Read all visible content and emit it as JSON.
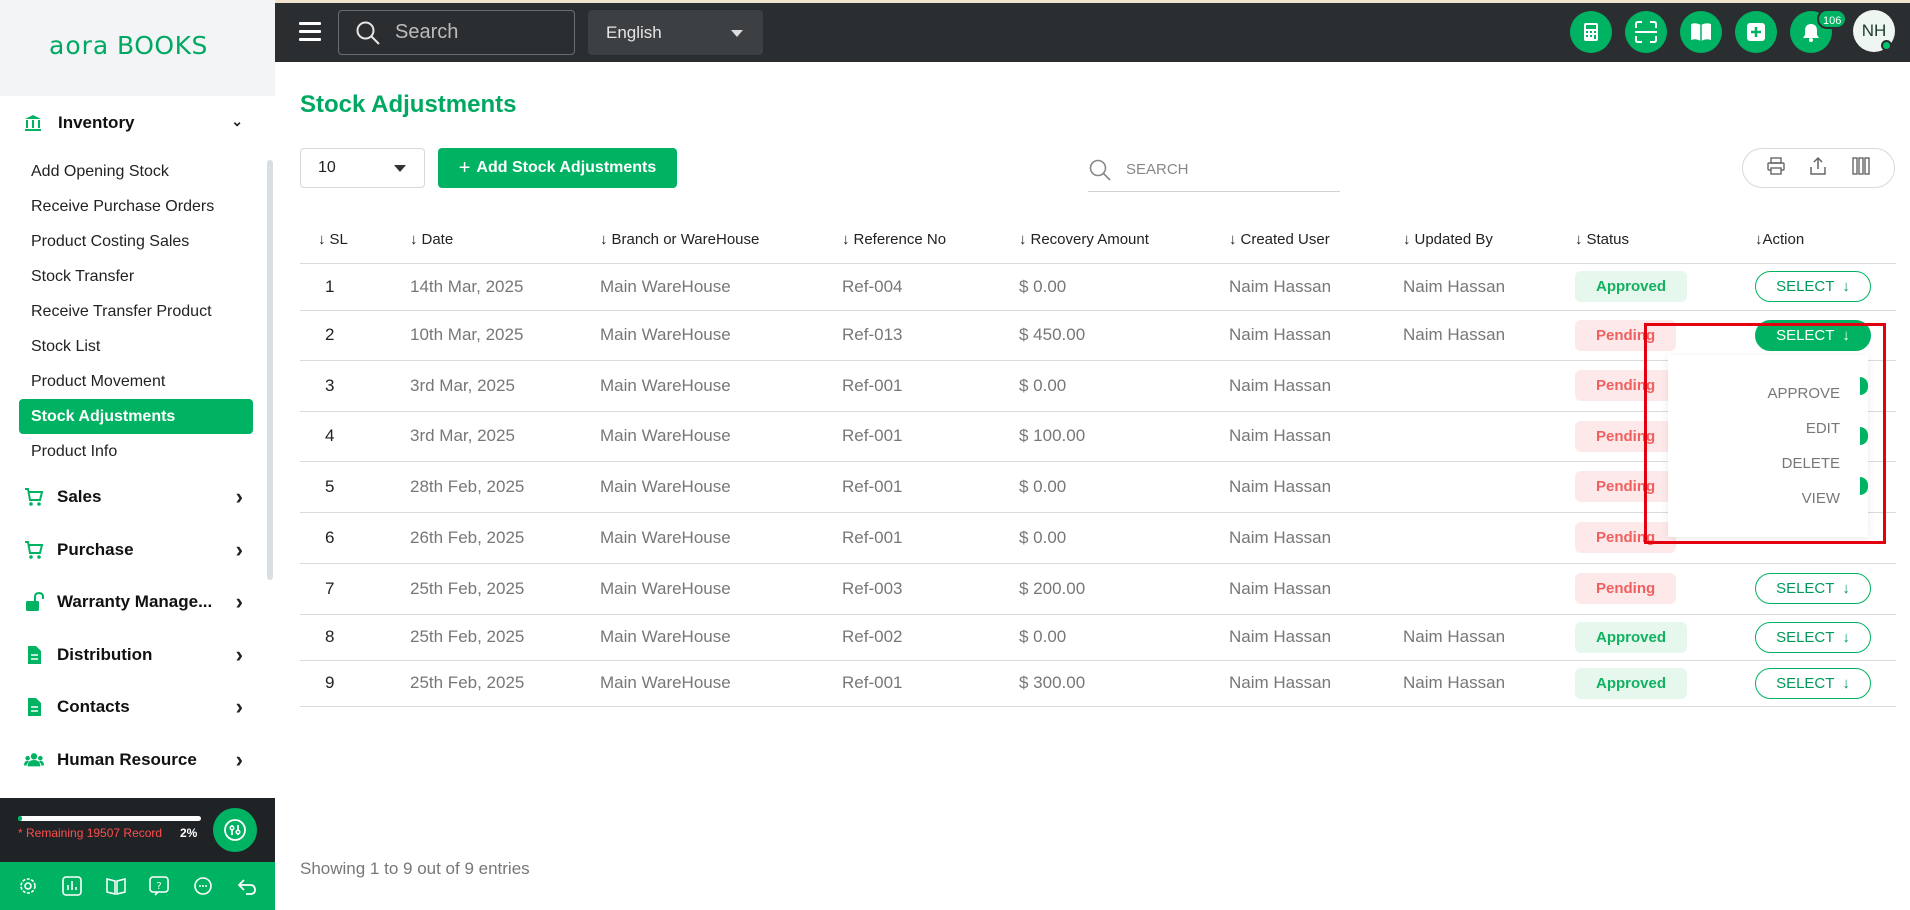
{
  "brand": {
    "logo_text": "aoraBOOKS"
  },
  "sidebar": {
    "inventory": {
      "label": "Inventory",
      "items": [
        {
          "label": "Add Opening Stock"
        },
        {
          "label": "Receive Purchase Orders"
        },
        {
          "label": "Product Costing Sales"
        },
        {
          "label": "Stock Transfer"
        },
        {
          "label": "Receive Transfer Product"
        },
        {
          "label": "Stock List"
        },
        {
          "label": "Product Movement"
        },
        {
          "label": "Stock Adjustments",
          "active": true
        },
        {
          "label": "Product Info"
        }
      ]
    },
    "groups": [
      {
        "label": "Sales",
        "icon": "cart-icon"
      },
      {
        "label": "Purchase",
        "icon": "cart-icon"
      },
      {
        "label": "Warranty Manage...",
        "icon": "unlock-icon"
      },
      {
        "label": "Distribution",
        "icon": "document-icon"
      },
      {
        "label": "Contacts",
        "icon": "document-icon"
      },
      {
        "label": "Human Resource",
        "icon": "users-icon"
      }
    ],
    "footer": {
      "remaining": "* Remaining 19507 Record",
      "percent": "2%",
      "progress_fraction": 0.02
    },
    "bottom_icons": [
      "gear-icon",
      "chart-icon",
      "book-icon",
      "help-icon",
      "chat-icon",
      "undo-icon"
    ]
  },
  "topbar": {
    "search_placeholder": "Search",
    "language": "English",
    "notification_count": "106",
    "avatar_initials": "NH",
    "icons": [
      "calculator-icon",
      "scan-icon",
      "book-open-icon",
      "plus-square-icon",
      "bell-icon"
    ]
  },
  "page": {
    "title": "Stock Adjustments",
    "per_page": "10",
    "add_button": "Add Stock Adjustments",
    "search_placeholder": "SEARCH",
    "footer": "Showing 1 to 9 out of 9 entries"
  },
  "table": {
    "columns": [
      "SL",
      "Date",
      "Branch or WareHouse",
      "Reference No",
      "Recovery Amount",
      "Created User",
      "Updated By",
      "Status",
      "Action"
    ],
    "rows": [
      {
        "sl": "1",
        "date": "14th Mar, 2025",
        "branch": "Main WareHouse",
        "ref": "Ref-004",
        "amount": "$ 0.00",
        "created": "Naim Hassan",
        "updated": "Naim Hassan",
        "status": "Approved",
        "action": "SELECT"
      },
      {
        "sl": "2",
        "date": "10th Mar, 2025",
        "branch": "Main WareHouse",
        "ref": "Ref-013",
        "amount": "$ 450.00",
        "created": "Naim Hassan",
        "updated": "Naim Hassan",
        "status": "Pending",
        "action": "SELECT"
      },
      {
        "sl": "3",
        "date": "3rd Mar, 2025",
        "branch": "Main WareHouse",
        "ref": "Ref-001",
        "amount": "$ 0.00",
        "created": "Naim Hassan",
        "updated": "",
        "status": "Pending",
        "action": ""
      },
      {
        "sl": "4",
        "date": "3rd Mar, 2025",
        "branch": "Main WareHouse",
        "ref": "Ref-001",
        "amount": "$ 100.00",
        "created": "Naim Hassan",
        "updated": "",
        "status": "Pending",
        "action": ""
      },
      {
        "sl": "5",
        "date": "28th Feb, 2025",
        "branch": "Main WareHouse",
        "ref": "Ref-001",
        "amount": "$ 0.00",
        "created": "Naim Hassan",
        "updated": "",
        "status": "Pending",
        "action": ""
      },
      {
        "sl": "6",
        "date": "26th Feb, 2025",
        "branch": "Main WareHouse",
        "ref": "Ref-001",
        "amount": "$ 0.00",
        "created": "Naim Hassan",
        "updated": "",
        "status": "Pending",
        "action": ""
      },
      {
        "sl": "7",
        "date": "25th Feb, 2025",
        "branch": "Main WareHouse",
        "ref": "Ref-003",
        "amount": "$ 200.00",
        "created": "Naim Hassan",
        "updated": "",
        "status": "Pending",
        "action": "SELECT"
      },
      {
        "sl": "8",
        "date": "25th Feb, 2025",
        "branch": "Main WareHouse",
        "ref": "Ref-002",
        "amount": "$ 0.00",
        "created": "Naim Hassan",
        "updated": "Naim Hassan",
        "status": "Approved",
        "action": "SELECT"
      },
      {
        "sl": "9",
        "date": "25th Feb, 2025",
        "branch": "Main WareHouse",
        "ref": "Ref-001",
        "amount": "$ 300.00",
        "created": "Naim Hassan",
        "updated": "Naim Hassan",
        "status": "Approved",
        "action": "SELECT"
      }
    ]
  },
  "action_menu": {
    "items": [
      "APPROVE",
      "EDIT",
      "DELETE",
      "VIEW"
    ]
  },
  "colors": {
    "accent": "#00b362",
    "topbar": "#2b2e31",
    "highlight": "#e3000f"
  }
}
